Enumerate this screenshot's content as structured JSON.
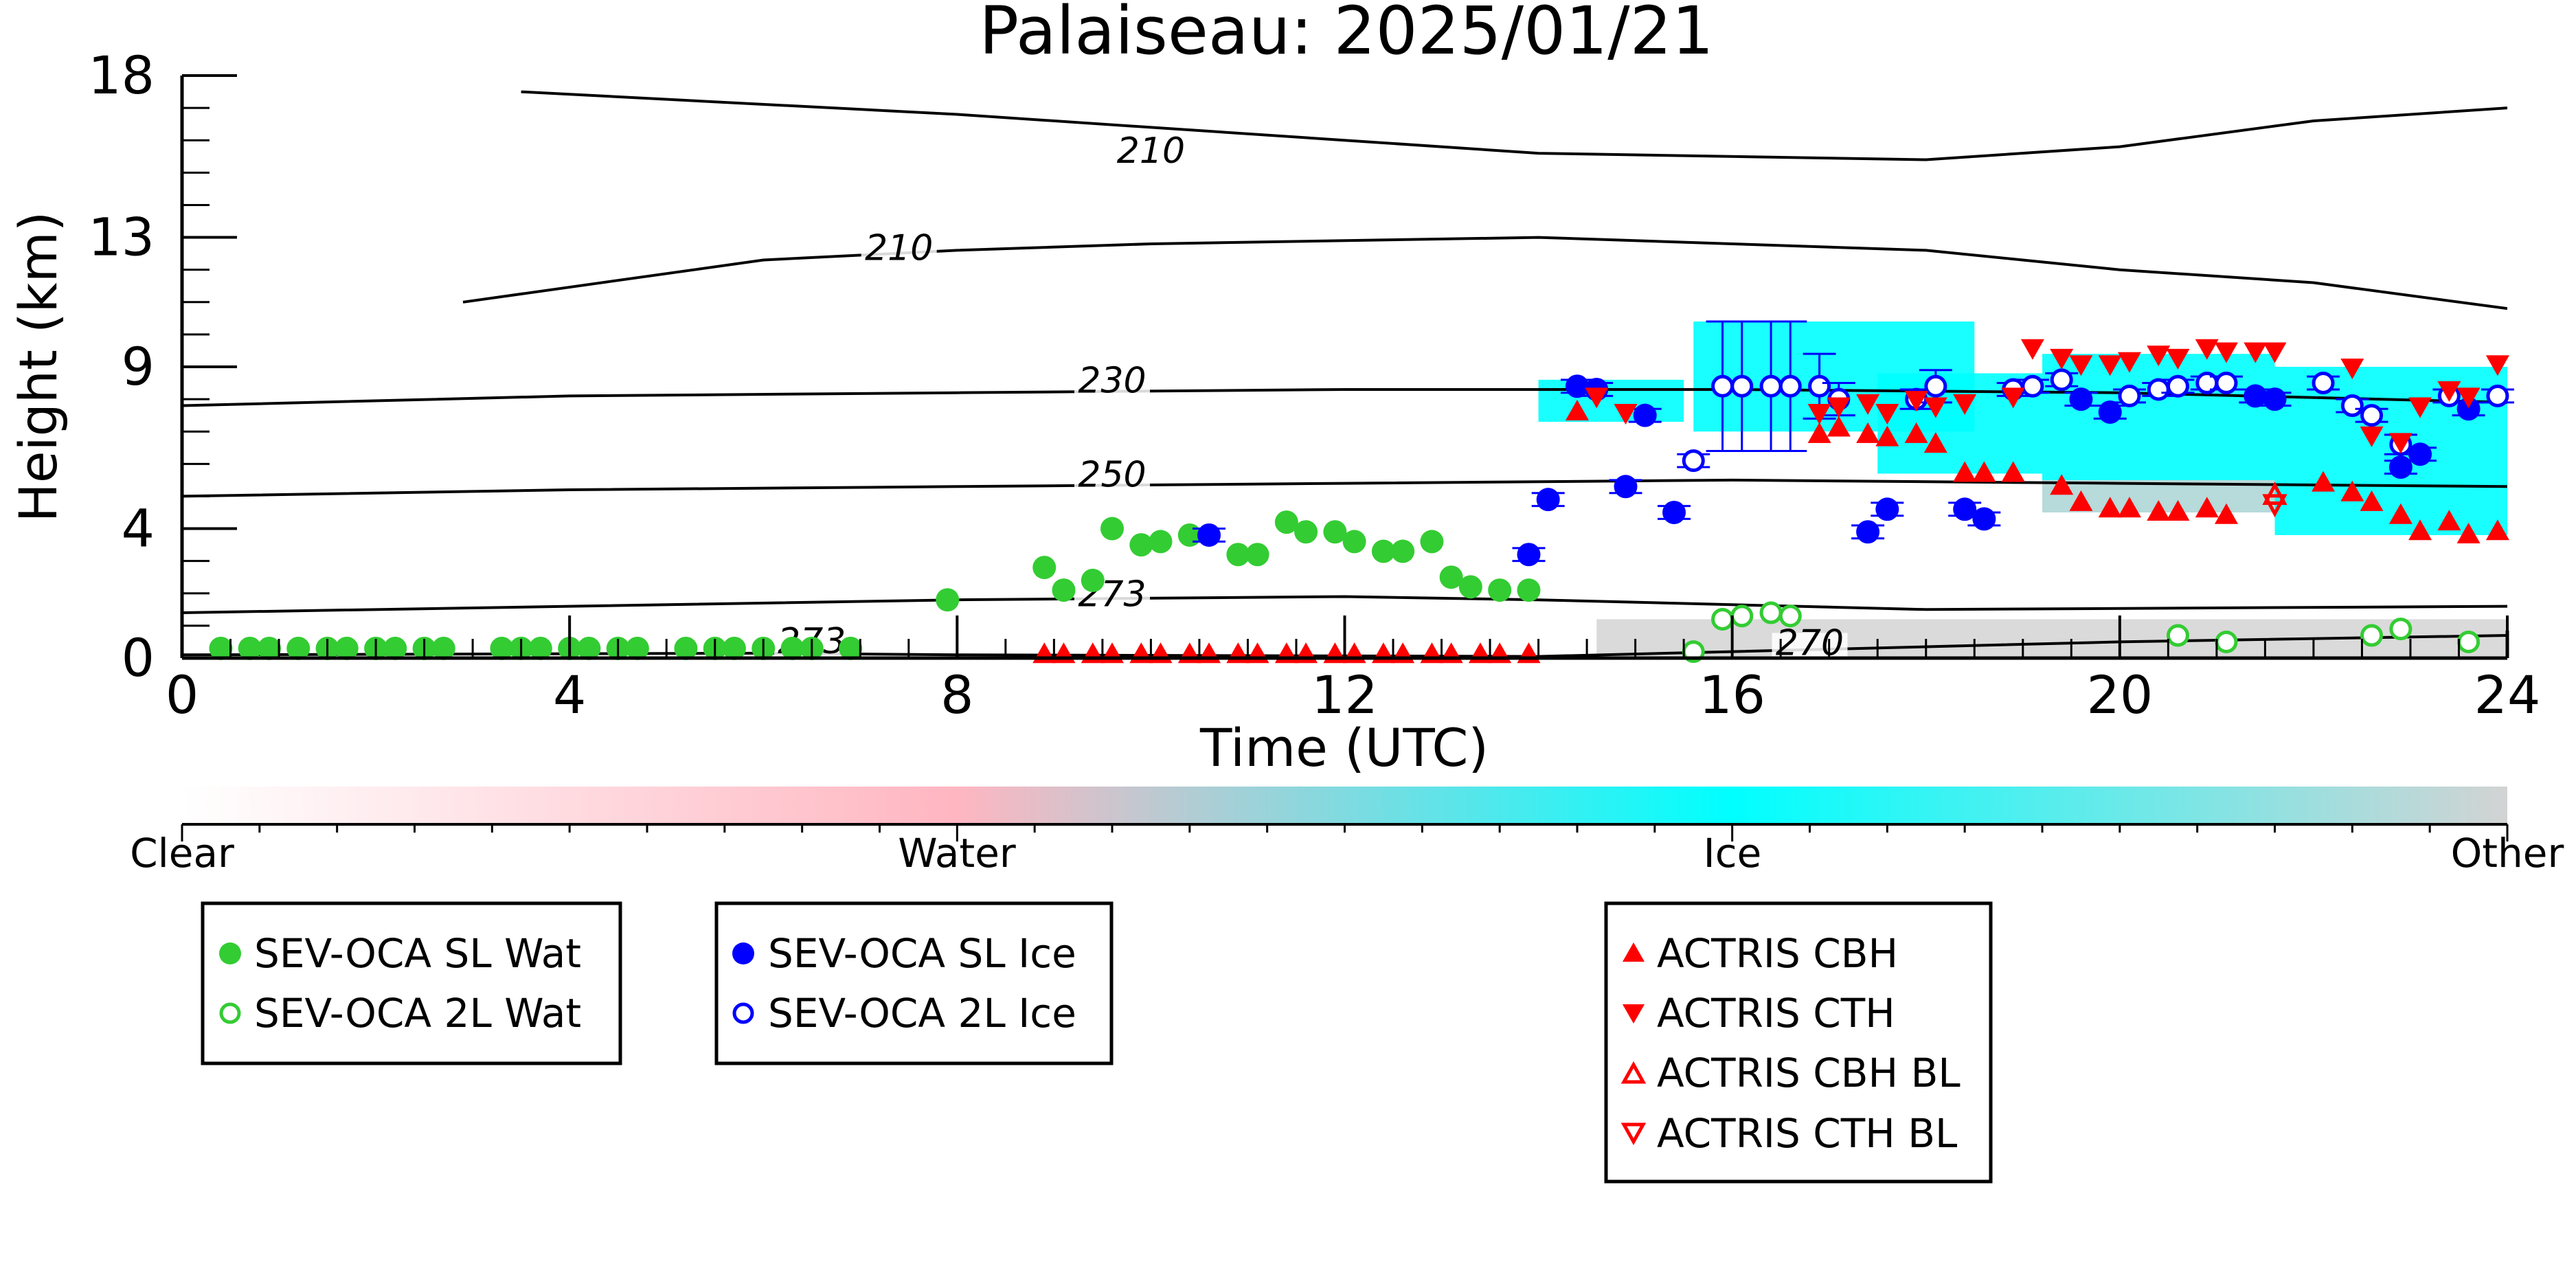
{
  "chart_data": {
    "type": "scatter",
    "title": "Palaiseau: 2025/01/21",
    "xlabel": "Time (UTC)",
    "ylabel": "Height (km)",
    "xlim": [
      0,
      24
    ],
    "ylim": [
      0,
      18
    ],
    "xticks": [
      0,
      4,
      8,
      12,
      16,
      20,
      24
    ],
    "yticks": [
      0,
      4,
      9,
      13,
      18
    ],
    "grid": false,
    "colorbar": {
      "labels": [
        "Clear",
        "Water",
        "Ice",
        "Other"
      ],
      "colors": [
        "#ffffff",
        "#ffb6c1",
        "#00ffff",
        "#d3d3d3"
      ]
    },
    "contours": [
      {
        "label": "210",
        "points": [
          [
            3.5,
            17.5
          ],
          [
            8,
            16.8
          ],
          [
            10,
            16.4
          ],
          [
            12,
            16.0
          ],
          [
            14,
            15.6
          ],
          [
            18,
            15.4
          ],
          [
            20,
            15.8
          ],
          [
            22,
            16.6
          ],
          [
            24,
            17.0
          ]
        ]
      },
      {
        "label": "210",
        "points": [
          [
            2.9,
            11
          ],
          [
            6,
            12.3
          ],
          [
            8,
            12.6
          ],
          [
            10,
            12.8
          ],
          [
            12,
            12.9
          ],
          [
            14,
            13.0
          ],
          [
            16,
            12.8
          ],
          [
            18,
            12.6
          ],
          [
            20,
            12.0
          ],
          [
            22,
            11.6
          ],
          [
            24,
            10.8
          ]
        ]
      },
      {
        "label": "230",
        "points": [
          [
            0,
            7.8
          ],
          [
            4,
            8.1
          ],
          [
            8,
            8.2
          ],
          [
            12,
            8.3
          ],
          [
            16,
            8.3
          ],
          [
            20,
            8.2
          ],
          [
            24,
            7.9
          ]
        ]
      },
      {
        "label": "250",
        "points": [
          [
            0,
            5.0
          ],
          [
            4,
            5.2
          ],
          [
            8,
            5.3
          ],
          [
            12,
            5.4
          ],
          [
            16,
            5.5
          ],
          [
            20,
            5.4
          ],
          [
            24,
            5.3
          ]
        ]
      },
      {
        "label": "273",
        "points": [
          [
            0,
            1.4
          ],
          [
            4,
            1.6
          ],
          [
            8,
            1.8
          ],
          [
            12,
            1.9
          ],
          [
            14,
            1.8
          ],
          [
            18,
            1.5
          ],
          [
            24,
            1.6
          ]
        ]
      },
      {
        "label": "273",
        "points": [
          [
            0,
            0.1
          ],
          [
            6,
            0.15
          ],
          [
            8,
            0.1
          ],
          [
            14,
            0.05
          ],
          [
            16,
            0.2
          ],
          [
            20,
            0.5
          ],
          [
            24,
            0.7
          ]
        ]
      }
    ],
    "contour_label_positions": [
      {
        "text": "210",
        "x": 10,
        "y": 15.3
      },
      {
        "text": "210",
        "x": 7.4,
        "y": 12.3
      },
      {
        "text": "230",
        "x": 9.6,
        "y": 8.2
      },
      {
        "text": "250",
        "x": 9.6,
        "y": 5.3
      },
      {
        "text": "273",
        "x": 9.6,
        "y": 1.6
      },
      {
        "text": "273",
        "x": 6.5,
        "y": 0.15
      },
      {
        "text": "270",
        "x": 16.8,
        "y": 0.1
      }
    ],
    "series": [
      {
        "name": "SEV-OCA SL Wat",
        "marker": "circle-filled",
        "color": "#33cc33",
        "x": [
          0.4,
          0.7,
          0.9,
          1.2,
          1.5,
          1.7,
          2.0,
          2.2,
          2.5,
          2.7,
          3.3,
          3.5,
          3.7,
          4.0,
          4.2,
          4.5,
          4.7,
          5.2,
          5.5,
          5.7,
          6.0,
          6.3,
          6.5,
          6.9,
          7.9,
          8.9,
          9.1,
          9.4,
          9.6,
          9.9,
          10.1,
          10.4,
          10.9,
          11.1,
          11.4,
          11.6,
          11.9,
          12.1,
          12.4,
          12.6,
          12.9,
          13.1,
          13.3,
          13.6,
          13.9
        ],
        "y": [
          0.3,
          0.3,
          0.3,
          0.3,
          0.3,
          0.3,
          0.3,
          0.3,
          0.3,
          0.3,
          0.3,
          0.3,
          0.3,
          0.3,
          0.3,
          0.3,
          0.3,
          0.3,
          0.3,
          0.3,
          0.3,
          0.3,
          0.3,
          0.3,
          1.8,
          2.8,
          2.1,
          2.4,
          4.0,
          3.5,
          3.6,
          3.8,
          3.2,
          3.2,
          4.2,
          3.9,
          3.9,
          3.6,
          3.3,
          3.3,
          3.6,
          2.5,
          2.2,
          2.1,
          2.1
        ]
      },
      {
        "name": "SEV-OCA 2L Wat",
        "marker": "circle-open",
        "color": "#33cc33",
        "x": [
          15.6,
          15.9,
          16.1,
          16.4,
          16.6,
          20.6,
          21.1,
          22.6,
          22.9,
          23.6
        ],
        "y": [
          0.2,
          1.2,
          1.3,
          1.4,
          1.3,
          0.7,
          0.5,
          0.7,
          0.9,
          0.5
        ]
      },
      {
        "name": "SEV-OCA SL Ice",
        "marker": "circle-filled",
        "color": "#0000ff",
        "x": [
          10.6,
          13.9,
          14.1,
          14.4,
          14.6,
          14.9,
          15.1,
          15.4,
          17.4,
          17.6,
          18.4,
          18.6,
          19.6,
          19.9,
          21.4,
          21.6,
          22.9,
          23.1,
          23.6
        ],
        "y": [
          3.8,
          3.2,
          4.9,
          8.4,
          8.3,
          5.3,
          7.5,
          4.5,
          3.9,
          4.6,
          4.6,
          4.3,
          8.0,
          7.6,
          8.1,
          8.0,
          5.9,
          6.3,
          7.7
        ],
        "yerr": 0.2
      },
      {
        "name": "SEV-OCA 2L Ice",
        "marker": "circle-open",
        "color": "#0000ff",
        "x": [
          15.6,
          15.9,
          16.1,
          16.4,
          16.6,
          16.9,
          17.1,
          17.9,
          18.1,
          18.9,
          19.1,
          19.4,
          20.1,
          20.4,
          20.6,
          20.9,
          21.1,
          22.1,
          22.4,
          22.6,
          22.9,
          23.4,
          23.9
        ],
        "y": [
          6.1,
          8.4,
          8.4,
          8.4,
          8.4,
          8.4,
          8.0,
          8.0,
          8.4,
          8.3,
          8.4,
          8.6,
          8.1,
          8.3,
          8.4,
          8.5,
          8.5,
          8.5,
          7.8,
          7.5,
          6.6,
          8.1,
          8.1
        ],
        "yerr": [
          0.2,
          2.0,
          2.0,
          2.0,
          2.0,
          1.0,
          0.5,
          0.3,
          0.5,
          0.2,
          0.2,
          0.2,
          0.2,
          0.2,
          0.2,
          0.2,
          0.2,
          0.2,
          0.2,
          0.2,
          0.3,
          0.2,
          0.2
        ]
      },
      {
        "name": "ACTRIS CBH",
        "marker": "triangle-up-filled",
        "color": "#ff0000",
        "x": [
          8.9,
          9.1,
          9.4,
          9.6,
          9.9,
          10.1,
          10.4,
          10.6,
          10.9,
          11.1,
          11.4,
          11.6,
          11.9,
          12.1,
          12.4,
          12.6,
          12.9,
          13.1,
          13.4,
          13.6,
          13.9,
          14.4,
          16.9,
          17.1,
          17.4,
          17.6,
          17.9,
          18.1,
          18.4,
          18.6,
          18.9,
          19.4,
          19.6,
          19.9,
          20.1,
          20.4,
          20.6,
          20.9,
          21.1,
          22.1,
          22.4,
          22.6,
          22.9,
          23.1,
          23.4,
          23.6,
          23.9
        ],
        "y": [
          0.1,
          0.1,
          0.1,
          0.1,
          0.1,
          0.1,
          0.1,
          0.1,
          0.1,
          0.1,
          0.1,
          0.1,
          0.1,
          0.1,
          0.1,
          0.1,
          0.1,
          0.1,
          0.1,
          0.1,
          0.1,
          7.6,
          6.9,
          7.1,
          6.9,
          6.8,
          6.9,
          6.6,
          5.7,
          5.7,
          5.7,
          5.3,
          4.8,
          4.6,
          4.6,
          4.5,
          4.5,
          4.6,
          4.4,
          5.4,
          5.1,
          4.8,
          4.4,
          3.9,
          4.2,
          3.8,
          3.9
        ]
      },
      {
        "name": "ACTRIS CTH",
        "marker": "triangle-down-filled",
        "color": "#ff0000",
        "x": [
          14.6,
          14.9,
          16.9,
          17.1,
          17.4,
          17.6,
          17.9,
          18.1,
          18.4,
          18.9,
          19.1,
          19.4,
          19.6,
          19.9,
          20.1,
          20.4,
          20.6,
          20.9,
          21.1,
          21.4,
          21.6,
          22.4,
          22.6,
          22.9,
          23.1,
          23.4,
          23.6,
          23.9
        ],
        "y": [
          8.1,
          7.6,
          7.6,
          7.8,
          7.9,
          7.6,
          8.0,
          7.8,
          7.9,
          8.1,
          9.6,
          9.3,
          9.1,
          9.1,
          9.2,
          9.4,
          9.3,
          9.6,
          9.5,
          9.5,
          9.5,
          9.0,
          6.9,
          6.7,
          7.8,
          8.3,
          8.1,
          9.1
        ]
      },
      {
        "name": "ACTRIS CBH BL",
        "marker": "triangle-up-open",
        "color": "#ff0000",
        "x": [
          21.6
        ],
        "y": [
          5.0
        ]
      },
      {
        "name": "ACTRIS CTH BL",
        "marker": "triangle-down-open",
        "color": "#ff0000",
        "x": [
          21.6
        ],
        "y": [
          4.8
        ]
      }
    ],
    "cloud_mask_regions": [
      {
        "class": "Ice",
        "color": "#00ffff",
        "x0": 14.0,
        "x1": 15.5,
        "y0": 7.3,
        "y1": 8.6
      },
      {
        "class": "Ice",
        "color": "#00ffff",
        "x0": 15.6,
        "x1": 18.5,
        "y0": 7.0,
        "y1": 10.4
      },
      {
        "class": "Ice",
        "color": "#00ffff",
        "x0": 17.5,
        "x1": 19.2,
        "y0": 5.7,
        "y1": 8.8
      },
      {
        "class": "Ice",
        "color": "#00ffff",
        "x0": 19.2,
        "x1": 21.6,
        "y0": 4.5,
        "y1": 9.4
      },
      {
        "class": "Ice",
        "color": "#00ffff",
        "x0": 21.6,
        "x1": 24.0,
        "y0": 3.8,
        "y1": 9.0
      },
      {
        "class": "Other",
        "color": "#d3d3d3",
        "x0": 14.6,
        "x1": 24.0,
        "y0": 0.0,
        "y1": 1.2
      },
      {
        "class": "Other",
        "color": "#d3d3d3",
        "x0": 19.2,
        "x1": 21.6,
        "y0": 4.5,
        "y1": 5.5
      }
    ]
  }
}
